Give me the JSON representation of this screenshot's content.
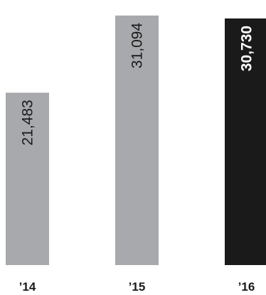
{
  "chart_data": {
    "type": "bar",
    "categories": [
      "’14",
      "’15",
      "’16"
    ],
    "values": [
      21483,
      31094,
      30730
    ],
    "value_labels": [
      "21,483",
      "31,094",
      "30,730"
    ],
    "ylim": [
      0,
      32500
    ],
    "highlight_index": 2,
    "colors": {
      "bar": "#a7a9ac",
      "highlight_bar": "#1a1a1a",
      "label_on_bar": "#1a1a1a",
      "label_on_highlight": "#ffffff",
      "category_label": "#1a1a1a"
    },
    "title": "",
    "xlabel": "",
    "ylabel": "",
    "grid": false,
    "legend": "none"
  }
}
